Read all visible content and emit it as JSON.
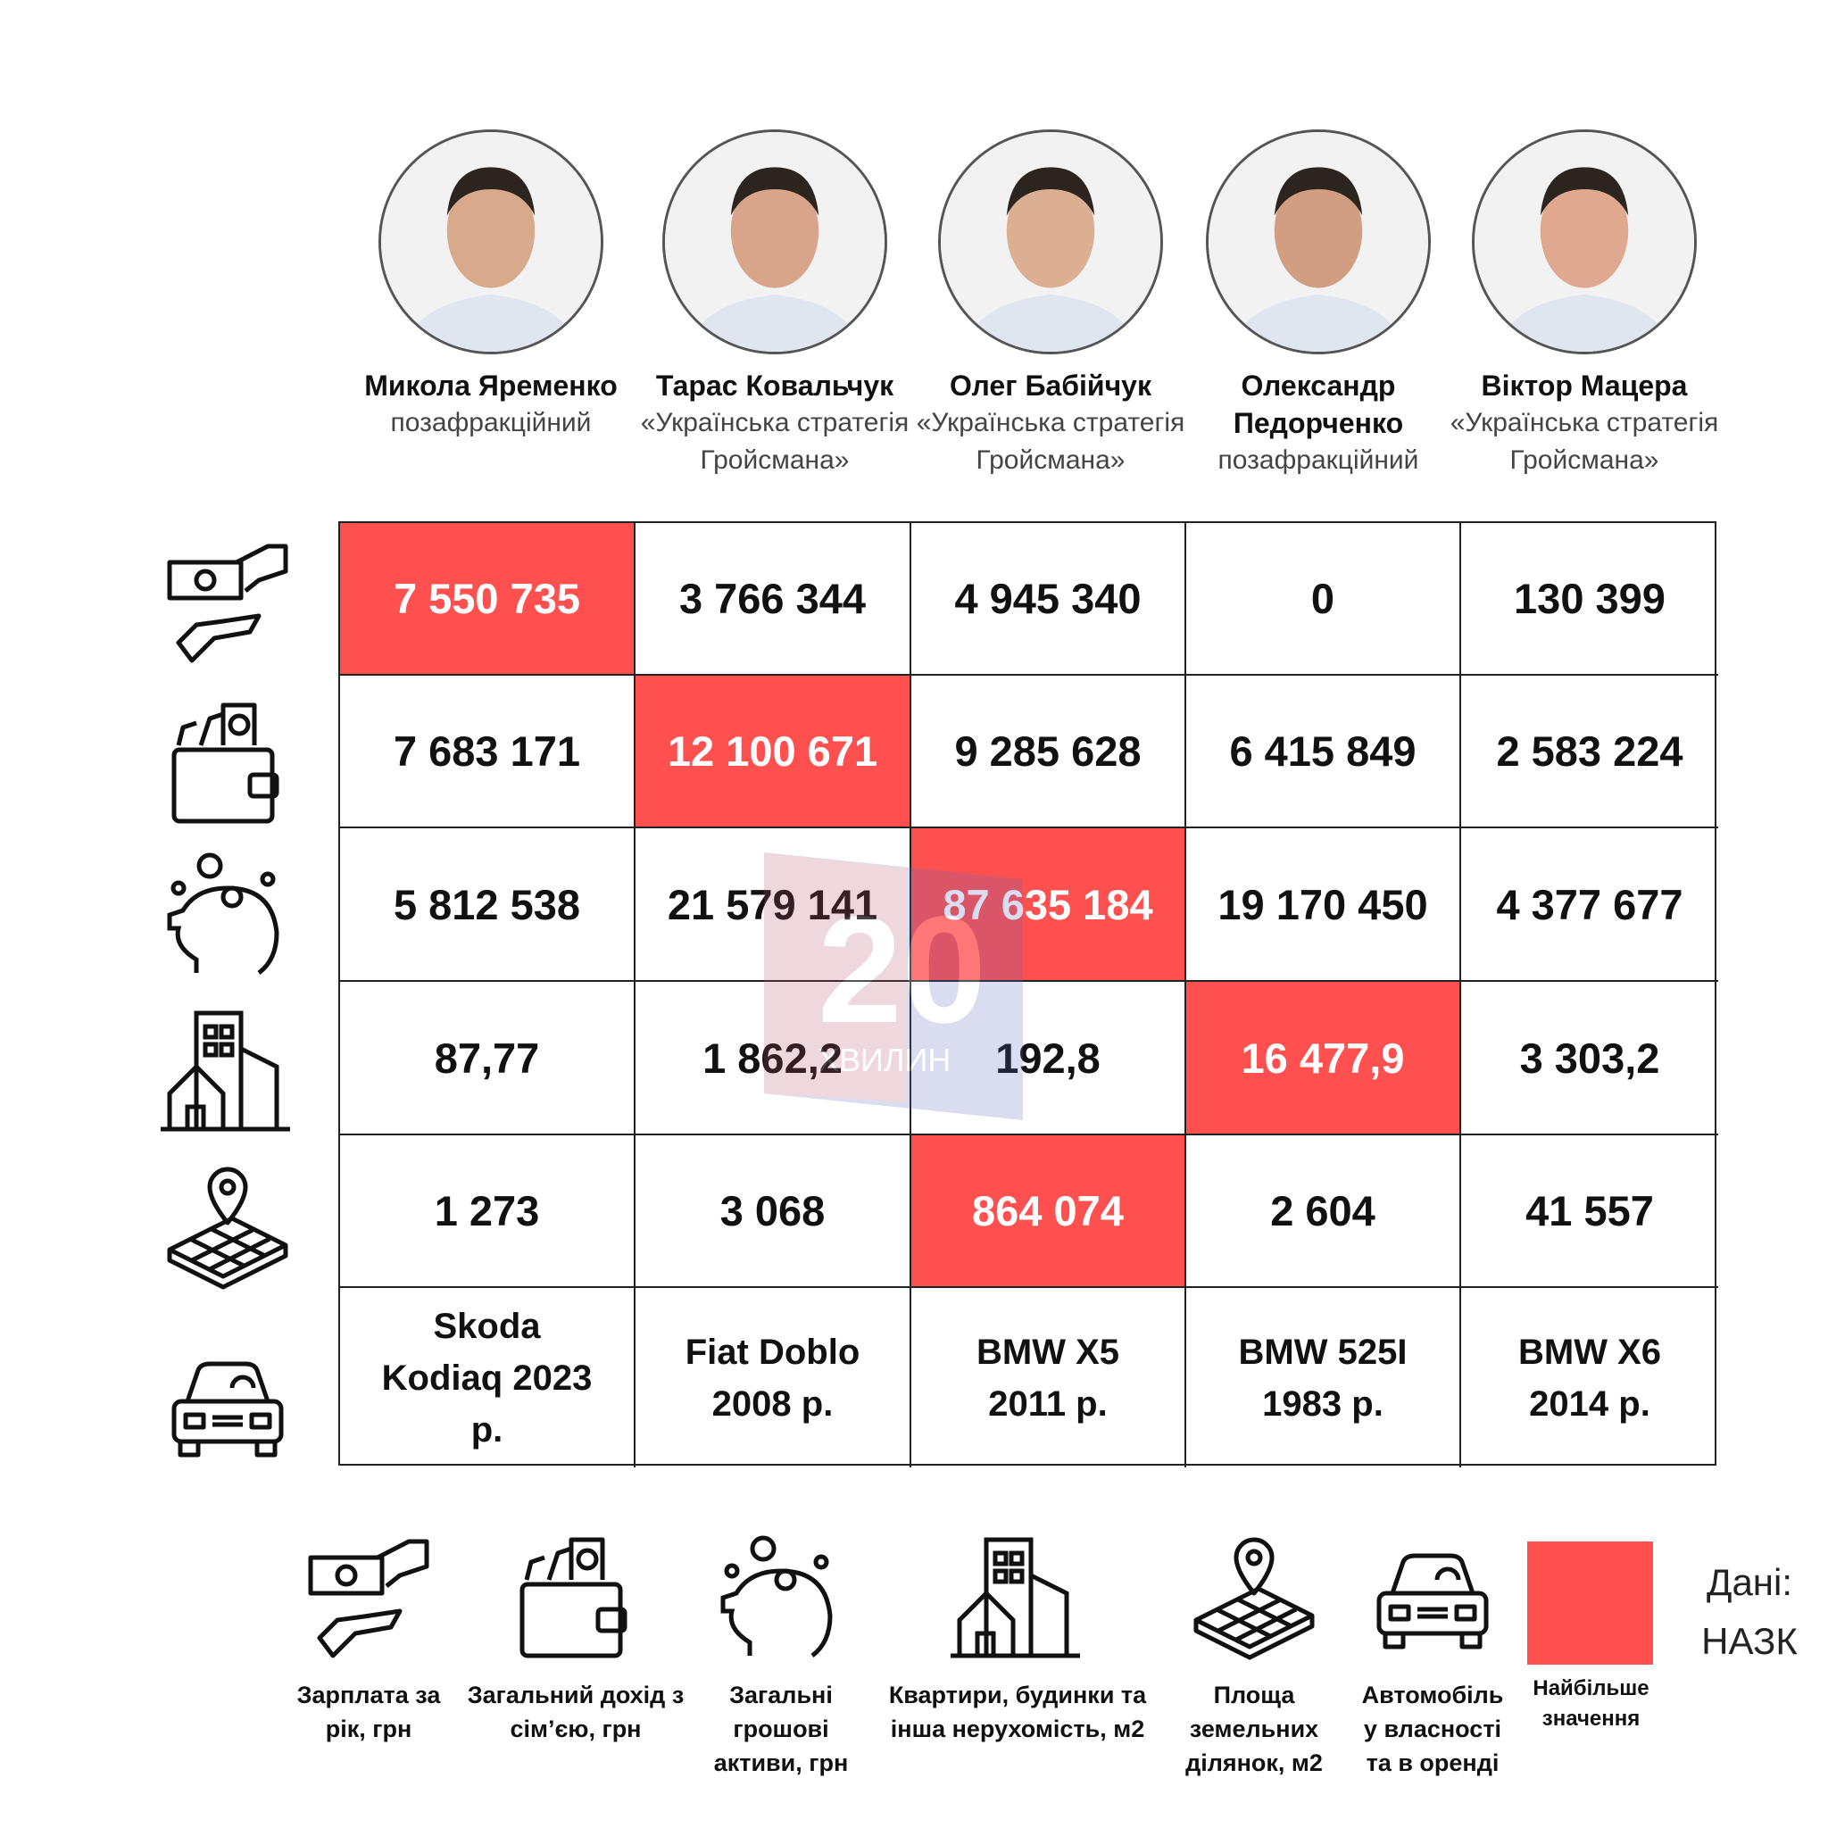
{
  "people": [
    {
      "name": "Микола Яременко",
      "party": "позафракційний"
    },
    {
      "name": "Тарас Ковальчук",
      "party": "«Українська стратегія Гройсмана»"
    },
    {
      "name": "Олег Бабійчук",
      "party": "«Українська стратегія Гройсмана»"
    },
    {
      "name": "Олександр Педорченко",
      "party": "позафракційний"
    },
    {
      "name": "Віктор Мацера",
      "party": "«Українська стратегія Гройсмана»"
    }
  ],
  "rows": [
    {
      "icon": "money-hand-icon",
      "values": [
        "7 550 735",
        "3 766 344",
        "4 945 340",
        "0",
        "130 399"
      ],
      "highlight": 0
    },
    {
      "icon": "wallet-icon",
      "values": [
        "7 683 171",
        "12 100 671",
        "9 285 628",
        "6 415 849",
        "2 583 224"
      ],
      "highlight": 1
    },
    {
      "icon": "piggy-bank-icon",
      "values": [
        "5 812 538",
        "21 579 141",
        "87 635 184",
        "19 170 450",
        "4 377 677"
      ],
      "highlight": 2
    },
    {
      "icon": "buildings-icon",
      "values": [
        "87,77",
        "1 862,2",
        "192,8",
        "16 477,9",
        "3 303,2"
      ],
      "highlight": 3
    },
    {
      "icon": "land-plot-icon",
      "values": [
        "1 273",
        "3 068",
        "864 074",
        "2 604",
        "41 557"
      ],
      "highlight": 2
    },
    {
      "icon": "car-icon",
      "values": [
        "Skoda Kodiaq 2023 р.",
        "Fiat Doblo 2008 р.",
        "BMW X5 2011 р.",
        "BMW 525I 1983 р.",
        "BMW X6 2014 р."
      ],
      "highlight": null
    }
  ],
  "legend": [
    {
      "icon": "money-hand-icon",
      "label": "Зарплата за рік, грн"
    },
    {
      "icon": "wallet-icon",
      "label": "Загальний дохід з сім’єю, грн"
    },
    {
      "icon": "piggy-bank-icon",
      "label": "Загальні грошові активи, грн"
    },
    {
      "icon": "buildings-icon",
      "label": "Квартири, будинки та інша нерухомість, м2"
    },
    {
      "icon": "land-plot-icon",
      "label": "Площа земельних ділянок, м2"
    },
    {
      "icon": "car-icon",
      "label": "Автомобіль у власності та в оренді"
    }
  ],
  "highlight_legend": {
    "label": "Найбільше значення",
    "color": "#ff5050"
  },
  "source": "Дані: НАЗК",
  "watermark": "20 ХВИЛИН"
}
